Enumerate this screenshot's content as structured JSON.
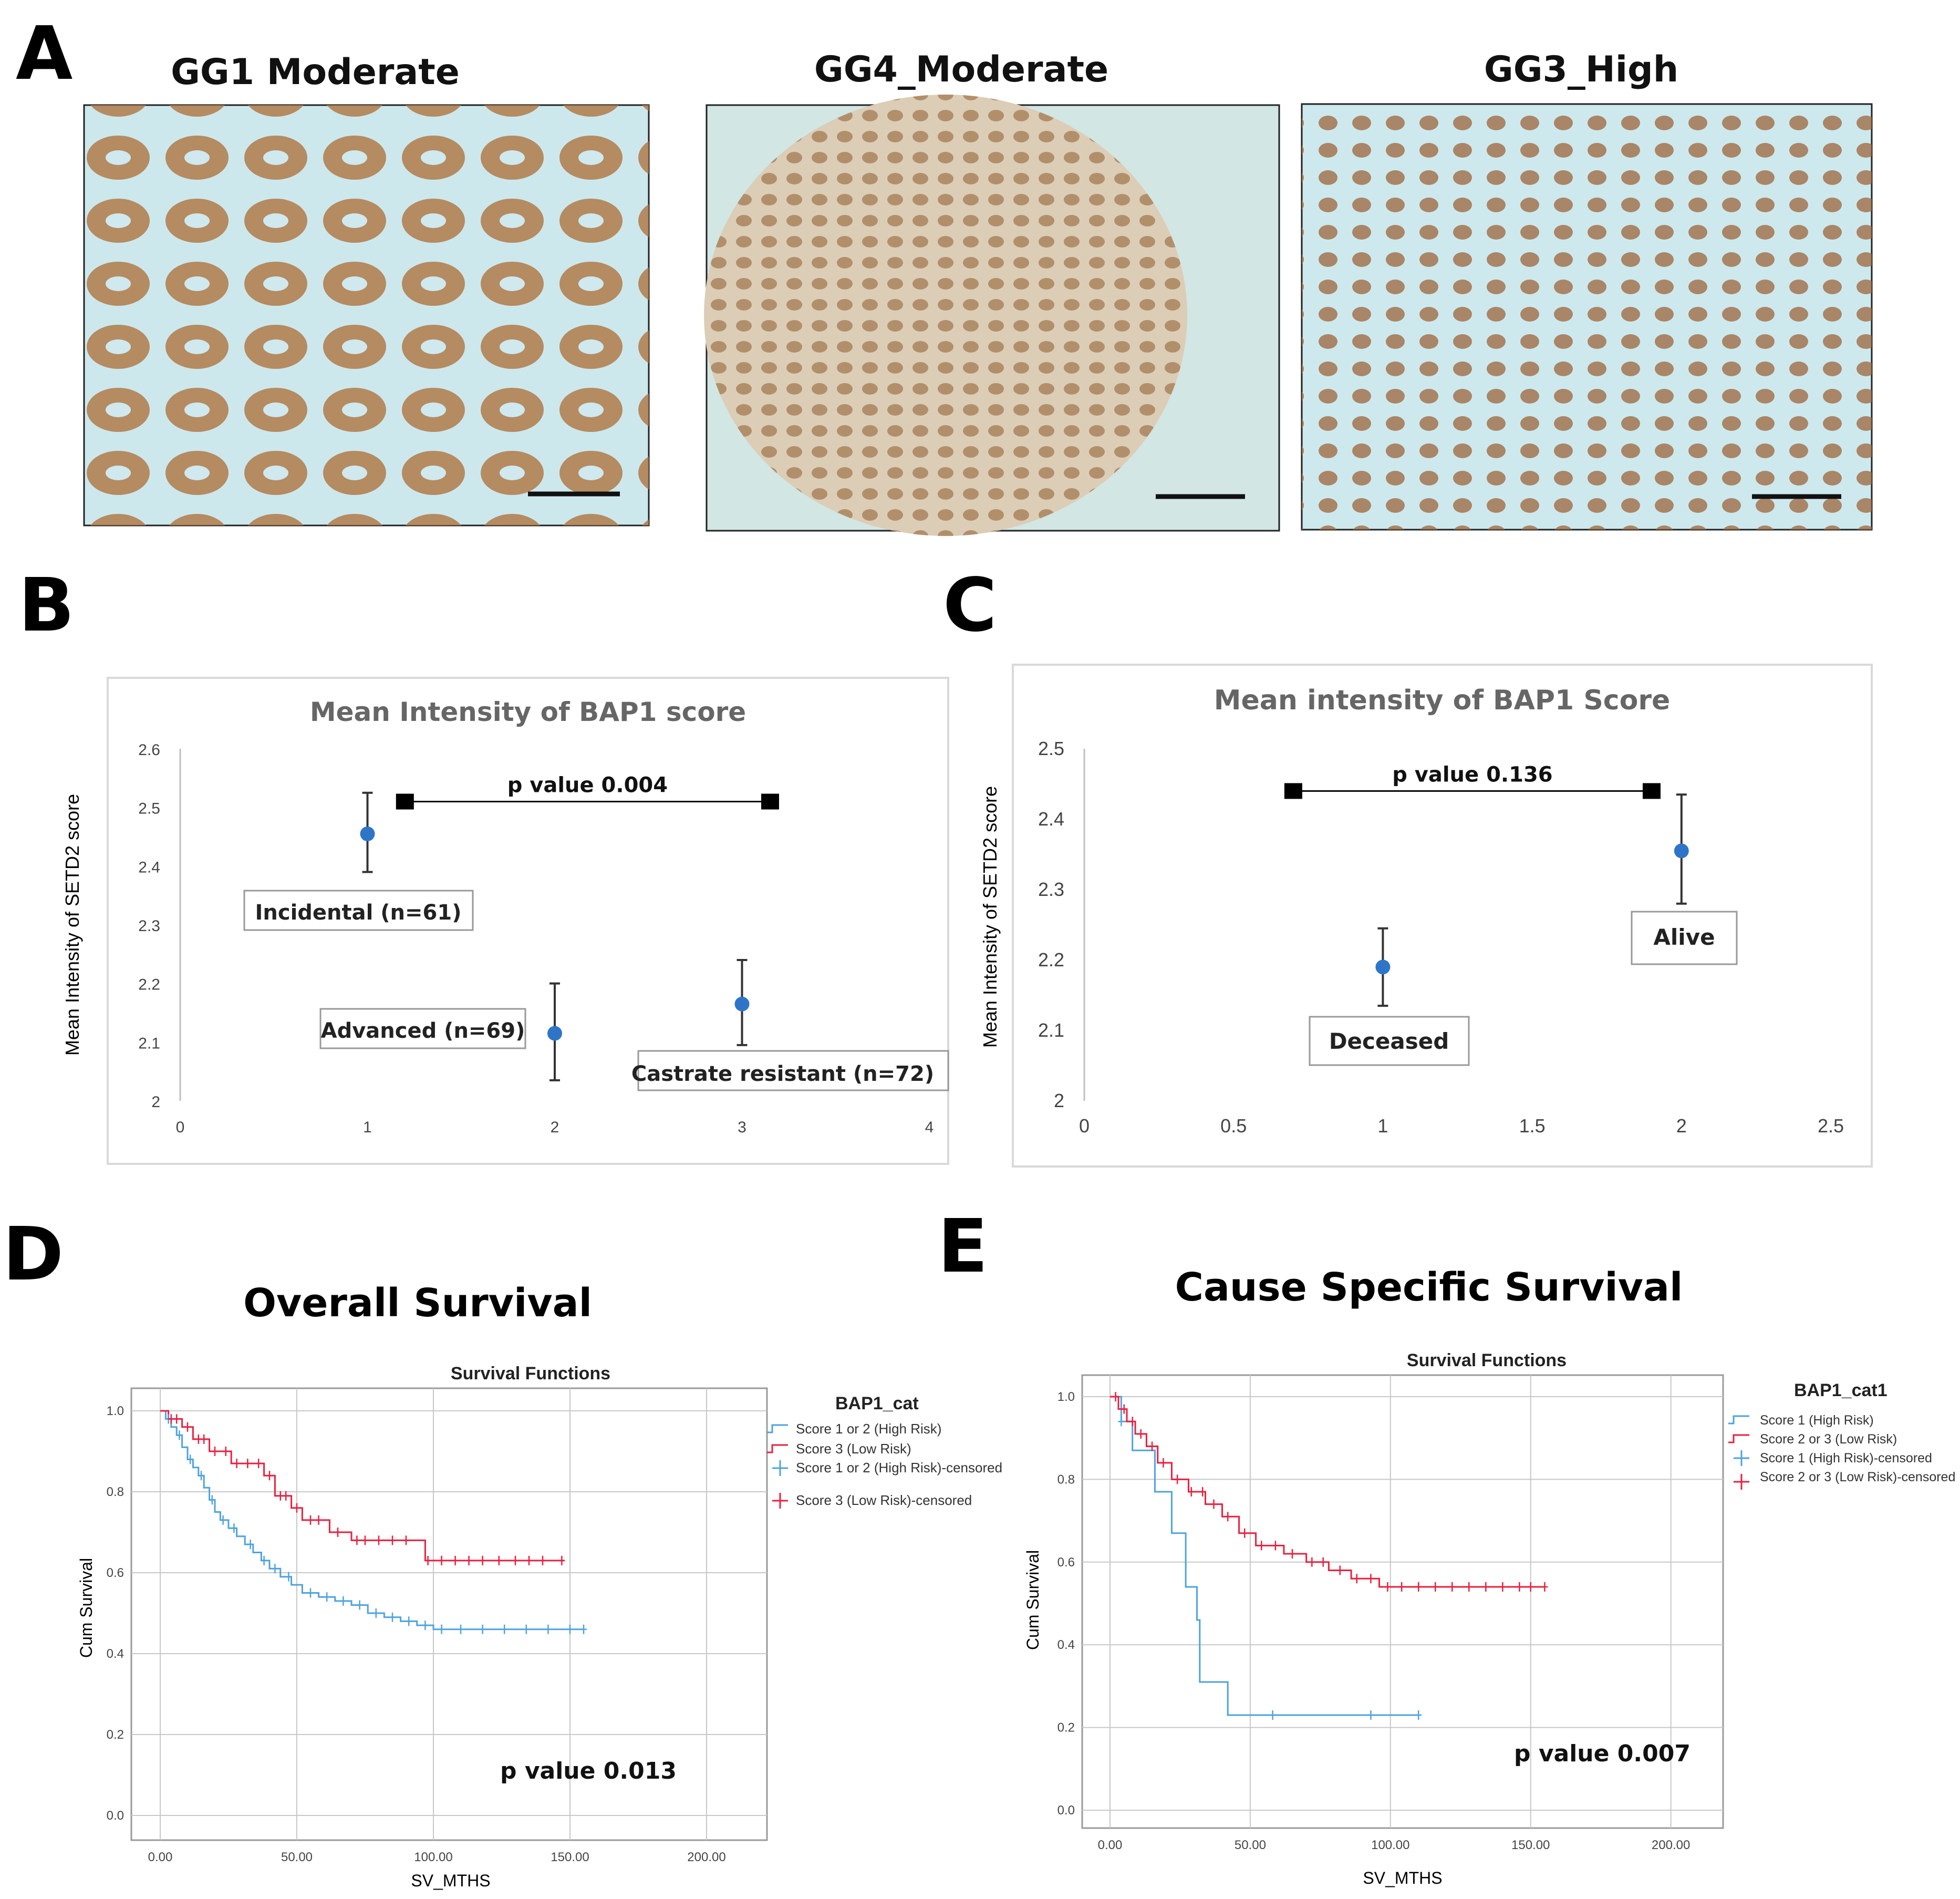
{
  "panels": {
    "A": {
      "letter": "A",
      "images": [
        {
          "title": "GG1 Moderate",
          "stain": "granular brown cytoplasmic staining"
        },
        {
          "title": "GG4_Moderate",
          "stain": "diffuse brown nuclear staining"
        },
        {
          "title": "GG3_High",
          "stain": "brown nuclear and cytoplasmic staining"
        }
      ]
    },
    "B": {
      "letter": "B"
    },
    "C": {
      "letter": "C"
    },
    "D": {
      "letter": "D",
      "heading": "Overall Survival"
    },
    "E": {
      "letter": "E",
      "heading": "Cause Specific Survival"
    }
  },
  "colors": {
    "marker": "#2e75c8",
    "km_blue": "#4ea3dd",
    "km_red": "#e8203f",
    "gridline": "#bfbfbf",
    "frame": "#d9d9d9"
  },
  "chart_data": [
    {
      "id": "B",
      "type": "scatter",
      "title": "Mean Intensity of BAP1 score",
      "xlabel": "",
      "ylabel": "Mean Intensity of SETD2 score",
      "xlim": [
        0,
        4
      ],
      "ylim": [
        2,
        2.6
      ],
      "xticks": [
        "0",
        "1",
        "2",
        "3",
        "4"
      ],
      "yticks": [
        "2",
        "2.1",
        "2.2",
        "2.3",
        "2.4",
        "2.5",
        "2.6"
      ],
      "points": [
        {
          "x": 1,
          "y": 2.455,
          "lo": 2.39,
          "hi": 2.525
        },
        {
          "x": 2,
          "y": 2.115,
          "lo": 2.035,
          "hi": 2.2
        },
        {
          "x": 3,
          "y": 2.165,
          "lo": 2.095,
          "hi": 2.24
        }
      ],
      "labels": [
        "Incidental (n=61)",
        "Advanced (n=69)",
        "Castrate resistant (n=72)"
      ],
      "comparison": {
        "x1": 1.2,
        "x2": 3.15,
        "y": 2.51,
        "text": "p value  0.004"
      }
    },
    {
      "id": "C",
      "type": "scatter",
      "title": "Mean intensity of BAP1 Score",
      "xlabel": "",
      "ylabel": "Mean Intensity of SETD2 score",
      "xlim": [
        0,
        2.5
      ],
      "ylim": [
        2,
        2.5
      ],
      "xticks": [
        "0",
        "0.5",
        "1",
        "1.5",
        "2",
        "2.5"
      ],
      "yticks": [
        "2",
        "2.1",
        "2.2",
        "2.3",
        "2.4",
        "2.5"
      ],
      "points": [
        {
          "x": 1,
          "y": 2.19,
          "lo": 2.135,
          "hi": 2.245
        },
        {
          "x": 2,
          "y": 2.355,
          "lo": 2.28,
          "hi": 2.435
        }
      ],
      "labels": [
        "Deceased",
        "Alive"
      ],
      "comparison": {
        "x1": 0.7,
        "x2": 1.9,
        "y": 2.44,
        "text": "p value  0.136"
      }
    },
    {
      "id": "D",
      "type": "line",
      "title": "Survival Functions",
      "xlabel": "SV_MTHS",
      "ylabel": "Cum Survival",
      "xlim": [
        0,
        210
      ],
      "ylim": [
        0,
        1.0
      ],
      "xticks": [
        "0.00",
        "50.00",
        "100.00",
        "150.00",
        "200.00"
      ],
      "yticks": [
        "0.0",
        "0.2",
        "0.4",
        "0.6",
        "0.8",
        "1.0"
      ],
      "legend_title": "BAP1_cat",
      "legend": [
        "Score 1 or 2 (High Risk)",
        "Score 3 (Low Risk)",
        "Score 1 or 2 (High Risk)-censored",
        "Score 3 (Low Risk)-censored"
      ],
      "p_value": "p value  0.013",
      "series": [
        {
          "name": "Score 1 or 2 (High Risk)",
          "color": "#4ea3dd",
          "steps": [
            [
              0,
              1.0
            ],
            [
              2,
              0.98
            ],
            [
              4,
              0.96
            ],
            [
              6,
              0.94
            ],
            [
              8,
              0.91
            ],
            [
              10,
              0.88
            ],
            [
              12,
              0.86
            ],
            [
              14,
              0.84
            ],
            [
              16,
              0.81
            ],
            [
              18,
              0.78
            ],
            [
              20,
              0.75
            ],
            [
              22,
              0.73
            ],
            [
              25,
              0.71
            ],
            [
              28,
              0.69
            ],
            [
              31,
              0.67
            ],
            [
              34,
              0.65
            ],
            [
              37,
              0.63
            ],
            [
              40,
              0.61
            ],
            [
              44,
              0.59
            ],
            [
              48,
              0.57
            ],
            [
              52,
              0.55
            ],
            [
              58,
              0.54
            ],
            [
              64,
              0.53
            ],
            [
              70,
              0.52
            ],
            [
              76,
              0.5
            ],
            [
              82,
              0.49
            ],
            [
              88,
              0.48
            ],
            [
              94,
              0.47
            ],
            [
              100,
              0.46
            ],
            [
              155,
              0.46
            ]
          ],
          "censored": [
            3,
            7,
            11,
            15,
            19,
            23,
            27,
            33,
            38,
            42,
            47,
            55,
            61,
            67,
            73,
            79,
            85,
            91,
            97,
            103,
            110,
            118,
            126,
            134,
            142,
            150,
            155
          ]
        },
        {
          "name": "Score 3 (Low Risk)",
          "color": "#e8203f",
          "steps": [
            [
              0,
              1.0
            ],
            [
              3,
              0.98
            ],
            [
              8,
              0.96
            ],
            [
              12,
              0.93
            ],
            [
              18,
              0.9
            ],
            [
              26,
              0.87
            ],
            [
              38,
              0.84
            ],
            [
              42,
              0.79
            ],
            [
              48,
              0.76
            ],
            [
              52,
              0.73
            ],
            [
              62,
              0.7
            ],
            [
              70,
              0.68
            ],
            [
              97,
              0.63
            ],
            [
              148,
              0.63
            ]
          ],
          "censored": [
            4,
            6,
            10,
            14,
            16,
            20,
            24,
            28,
            32,
            36,
            40,
            44,
            46,
            50,
            55,
            58,
            65,
            72,
            75,
            80,
            85,
            90,
            98,
            103,
            108,
            113,
            118,
            124,
            130,
            135,
            140,
            147
          ]
        }
      ]
    },
    {
      "id": "E",
      "type": "line",
      "title": "Survival Functions",
      "xlabel": "SV_MTHS",
      "ylabel": "Cum Survival",
      "xlim": [
        0,
        210
      ],
      "ylim": [
        0,
        1.0
      ],
      "xticks": [
        "0.00",
        "50.00",
        "100.00",
        "150.00",
        "200.00"
      ],
      "yticks": [
        "0.0",
        "0.2",
        "0.4",
        "0.6",
        "0.8",
        "1.0"
      ],
      "legend_title": "BAP1_cat1",
      "legend": [
        "Score 1 (High Risk)",
        "Score 2 or 3 (Low Risk)",
        "Score 1 (High Risk)-censored",
        "Score 2 or 3 (Low Risk)-censored"
      ],
      "p_value": "p value  0.007",
      "series": [
        {
          "name": "Score 1 (High Risk)",
          "color": "#4ea3dd",
          "steps": [
            [
              0,
              1.0
            ],
            [
              4,
              0.94
            ],
            [
              8,
              0.87
            ],
            [
              16,
              0.77
            ],
            [
              22,
              0.67
            ],
            [
              27,
              0.54
            ],
            [
              31,
              0.46
            ],
            [
              32,
              0.31
            ],
            [
              42,
              0.23
            ],
            [
              110,
              0.23
            ]
          ],
          "censored": [
            4,
            58,
            93,
            110
          ]
        },
        {
          "name": "Score 2 or 3 (Low Risk)",
          "color": "#e8203f",
          "steps": [
            [
              0,
              1.0
            ],
            [
              3,
              0.97
            ],
            [
              6,
              0.94
            ],
            [
              9,
              0.91
            ],
            [
              13,
              0.88
            ],
            [
              17,
              0.84
            ],
            [
              22,
              0.8
            ],
            [
              28,
              0.77
            ],
            [
              34,
              0.74
            ],
            [
              40,
              0.71
            ],
            [
              46,
              0.67
            ],
            [
              52,
              0.64
            ],
            [
              62,
              0.62
            ],
            [
              70,
              0.6
            ],
            [
              78,
              0.58
            ],
            [
              86,
              0.56
            ],
            [
              96,
              0.54
            ],
            [
              155,
              0.54
            ]
          ],
          "censored": [
            2,
            5,
            8,
            11,
            15,
            19,
            24,
            29,
            33,
            37,
            42,
            48,
            54,
            59,
            65,
            72,
            76,
            82,
            88,
            93,
            99,
            104,
            110,
            116,
            122,
            128,
            134,
            140,
            146,
            150,
            155
          ]
        }
      ]
    }
  ]
}
